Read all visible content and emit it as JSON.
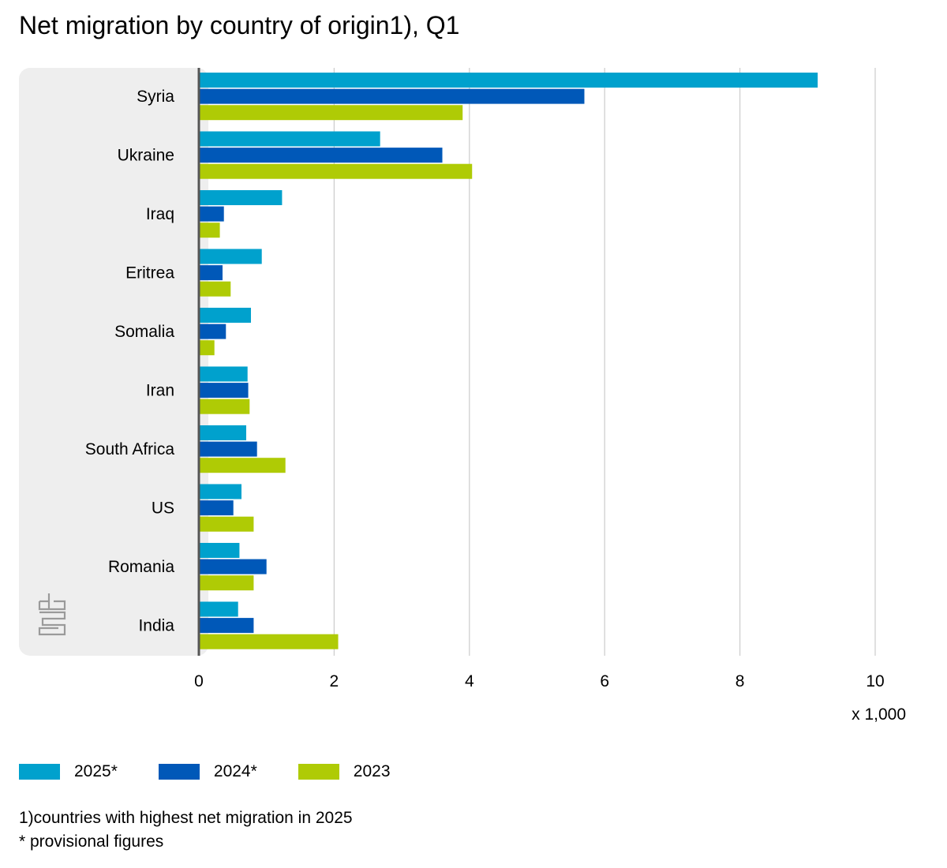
{
  "chart_data": {
    "type": "bar",
    "orientation": "horizontal",
    "title": "Net migration by country of origin1), Q1",
    "categories": [
      "Syria",
      "Ukraine",
      "Iraq",
      "Eritrea",
      "Somalia",
      "Iran",
      "South Africa",
      "US",
      "Romania",
      "India"
    ],
    "series": [
      {
        "name": "2025*",
        "color": "#00a1cd",
        "values": [
          9.15,
          2.68,
          1.23,
          0.93,
          0.77,
          0.72,
          0.7,
          0.63,
          0.6,
          0.58
        ]
      },
      {
        "name": "2024*",
        "color": "#0058b8",
        "values": [
          5.7,
          3.6,
          0.37,
          0.35,
          0.4,
          0.73,
          0.86,
          0.51,
          1.0,
          0.81
        ]
      },
      {
        "name": "2023",
        "color": "#afcb05",
        "values": [
          3.9,
          4.04,
          0.31,
          0.47,
          0.23,
          0.75,
          1.28,
          0.81,
          0.81,
          2.06
        ]
      }
    ],
    "xlim": [
      0,
      10
    ],
    "xticks": [
      "0",
      "2",
      "4",
      "6",
      "8",
      "10"
    ],
    "xlabel": "x 1,000",
    "ylabel": "",
    "grid": true,
    "legend_position": "bottom-left"
  },
  "notes": {
    "footnote": "1)countries with highest net migration in 2025",
    "provisional": "* provisional figures"
  },
  "logo": {
    "text": "cbs",
    "icon": "cbs-logo-icon"
  }
}
